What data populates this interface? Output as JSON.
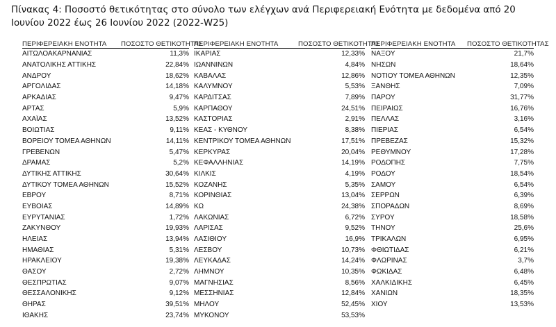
{
  "title": "Πίνακας 4: Ποσοστό θετικότητας στο σύνολο των ελέγχων ανά Περιφερειακή Ενότητα με δεδομένα από 20 Ιουνίου 2022 έως 26 Ιουνίου 2022 (2022-W25)",
  "headers": {
    "region": "ΠΕΡΙΦΕΡΕΙΑΚΗ ΕΝΟΤΗΤΑ",
    "rate": "ΠΟΣΟΣΤΟ ΘΕΤΙΚΟΤΗΤΑΣ"
  },
  "columns": [
    {
      "rows": [
        [
          "ΑΙΤΩΛΟΑΚΑΡΝΑΝΙΑΣ",
          "11,3%"
        ],
        [
          "ΑΝΑΤΟΛΙΚΗΣ ΑΤΤΙΚΗΣ",
          "22,84%"
        ],
        [
          "ΑΝΔΡΟΥ",
          "18,62%"
        ],
        [
          "ΑΡΓΟΛΙΔΑΣ",
          "14,18%"
        ],
        [
          "ΑΡΚΑΔΙΑΣ",
          "9,47%"
        ],
        [
          "ΑΡΤΑΣ",
          "5,9%"
        ],
        [
          "ΑΧΑΪΑΣ",
          "13,52%"
        ],
        [
          "ΒΟΙΩΤΙΑΣ",
          "9,11%"
        ],
        [
          "ΒΟΡΕΙΟΥ ΤΟΜΕΑ ΑΘΗΝΩΝ",
          "14,11%"
        ],
        [
          "ΓΡΕΒΕΝΩΝ",
          "5,47%"
        ],
        [
          "ΔΡΑΜΑΣ",
          "5,2%"
        ],
        [
          "ΔΥΤΙΚΗΣ ΑΤΤΙΚΗΣ",
          "30,64%"
        ],
        [
          "ΔΥΤΙΚΟΥ ΤΟΜΕΑ ΑΘΗΝΩΝ",
          "15,52%"
        ],
        [
          "ΕΒΡΟΥ",
          "8,71%"
        ],
        [
          "ΕΥΒΟΙΑΣ",
          "14,89%"
        ],
        [
          "ΕΥΡΥΤΑΝΙΑΣ",
          "1,72%"
        ],
        [
          "ΖΑΚΥΝΘΟΥ",
          "19,93%"
        ],
        [
          "ΗΛΕΙΑΣ",
          "13,94%"
        ],
        [
          "ΗΜΑΘΙΑΣ",
          "5,31%"
        ],
        [
          "ΗΡΑΚΛΕΙΟΥ",
          "19,38%"
        ],
        [
          "ΘΑΣΟΥ",
          "2,72%"
        ],
        [
          "ΘΕΣΠΡΩΤΙΑΣ",
          "9,07%"
        ],
        [
          "ΘΕΣΣΑΛΟΝΙΚΗΣ",
          "9,12%"
        ],
        [
          "ΘΗΡΑΣ",
          "39,51%"
        ],
        [
          "ΙΘΑΚΗΣ",
          "23,74%"
        ]
      ]
    },
    {
      "rows": [
        [
          "ΙΚΑΡΙΑΣ",
          "12,33%"
        ],
        [
          "ΙΩΑΝΝΙΝΩΝ",
          "4,84%"
        ],
        [
          "ΚΑΒΑΛΑΣ",
          "12,86%"
        ],
        [
          "ΚΑΛΥΜΝΟΥ",
          "5,53%"
        ],
        [
          "ΚΑΡΔΙΤΣΑΣ",
          "7,89%"
        ],
        [
          "ΚΑΡΠΑΘΟΥ",
          "24,51%"
        ],
        [
          "ΚΑΣΤΟΡΙΑΣ",
          "2,91%"
        ],
        [
          "ΚΕΑΣ - ΚΥΘΝΟΥ",
          "8,38%"
        ],
        [
          "ΚΕΝΤΡΙΚΟΥ ΤΟΜΕΑ ΑΘΗΝΩΝ",
          "17,51%"
        ],
        [
          "ΚΕΡΚΥΡΑΣ",
          "20,04%"
        ],
        [
          "ΚΕΦΑΛΛΗΝΙΑΣ",
          "14,19%"
        ],
        [
          "ΚΙΛΚΙΣ",
          "4,19%"
        ],
        [
          "ΚΟΖΑΝΗΣ",
          "5,35%"
        ],
        [
          "ΚΟΡΙΝΘΙΑΣ",
          "13,04%"
        ],
        [
          "ΚΩ",
          "24,38%"
        ],
        [
          "ΛΑΚΩΝΙΑΣ",
          "6,72%"
        ],
        [
          "ΛΑΡΙΣΑΣ",
          "9,52%"
        ],
        [
          "ΛΑΣΙΘΙΟΥ",
          "16,9%"
        ],
        [
          "ΛΕΣΒΟΥ",
          "10,73%"
        ],
        [
          "ΛΕΥΚΑΔΑΣ",
          "14,24%"
        ],
        [
          "ΛΗΜΝΟΥ",
          "10,35%"
        ],
        [
          "ΜΑΓΝΗΣΙΑΣ",
          "8,56%"
        ],
        [
          "ΜΕΣΣΗΝΙΑΣ",
          "12,84%"
        ],
        [
          "ΜΗΛΟΥ",
          "52,45%"
        ],
        [
          "ΜΥΚΟΝΟΥ",
          "53,53%"
        ]
      ]
    },
    {
      "rows": [
        [
          "ΝΑΞΟΥ",
          "21,7%"
        ],
        [
          "ΝΗΣΩΝ",
          "18,64%"
        ],
        [
          "ΝΟΤΙΟΥ ΤΟΜΕΑ ΑΘΗΝΩΝ",
          "12,35%"
        ],
        [
          "ΞΑΝΘΗΣ",
          "7,09%"
        ],
        [
          "ΠΑΡΟΥ",
          "31,77%"
        ],
        [
          "ΠΕΙΡΑΙΩΣ",
          "16,76%"
        ],
        [
          "ΠΕΛΛΑΣ",
          "3,16%"
        ],
        [
          "ΠΙΕΡΙΑΣ",
          "6,54%"
        ],
        [
          "ΠΡΕΒΕΖΑΣ",
          "15,32%"
        ],
        [
          "ΡΕΘΥΜΝΟΥ",
          "17,28%"
        ],
        [
          "ΡΟΔΟΠΗΣ",
          "7,75%"
        ],
        [
          "ΡΟΔΟΥ",
          "18,54%"
        ],
        [
          "ΣΑΜΟΥ",
          "6,54%"
        ],
        [
          "ΣΕΡΡΩΝ",
          "6,39%"
        ],
        [
          "ΣΠΟΡΑΔΩΝ",
          "8,69%"
        ],
        [
          "ΣΥΡΟΥ",
          "18,58%"
        ],
        [
          "ΤΗΝΟΥ",
          "25,6%"
        ],
        [
          "ΤΡΙΚΑΛΩΝ",
          "6,95%"
        ],
        [
          "ΦΘΙΩΤΙΔΑΣ",
          "6,21%"
        ],
        [
          "ΦΛΩΡΙΝΑΣ",
          "3,7%"
        ],
        [
          "ΦΩΚΙΔΑΣ",
          "6,48%"
        ],
        [
          "ΧΑΛΚΙΔΙΚΗΣ",
          "6,45%"
        ],
        [
          "ΧΑΝΙΩΝ",
          "18,35%"
        ],
        [
          "ΧΙΟΥ",
          "13,53%"
        ]
      ]
    }
  ]
}
